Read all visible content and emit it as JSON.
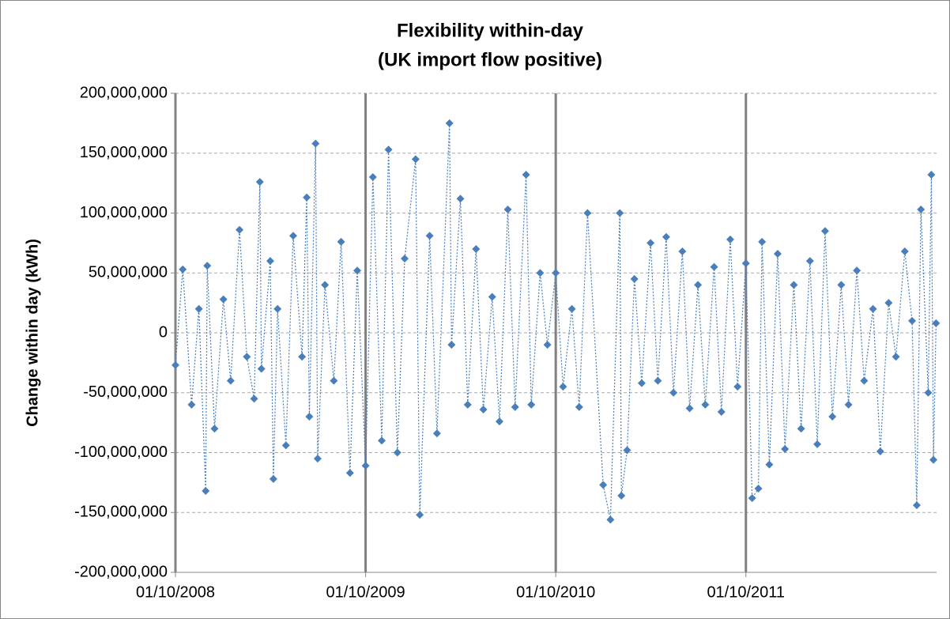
{
  "chart_data": {
    "type": "line",
    "title": [
      "Flexibility within-day",
      "(UK import flow positive)"
    ],
    "y_label": "Change within day (kWh)",
    "x": [
      "01/10/2008",
      "15/10/2008",
      "01/11/2008",
      "15/11/2008",
      "28/11/2008",
      "01/12/2008",
      "15/12/2008",
      "01/01/2009",
      "15/01/2009",
      "01/02/2009",
      "15/02/2009",
      "01/03/2009",
      "12/03/2009",
      "15/03/2009",
      "01/04/2009",
      "07/04/2009",
      "15/04/2009",
      "01/05/2009",
      "15/05/2009",
      "01/06/2009",
      "10/06/2009",
      "15/06/2009",
      "27/06/2009",
      "01/07/2009",
      "15/07/2009",
      "01/08/2009",
      "15/08/2009",
      "01/09/2009",
      "15/09/2009",
      "01/10/2009",
      "15/10/2009",
      "01/11/2009",
      "14/11/2009",
      "01/12/2009",
      "15/12/2009",
      "05/01/2010",
      "13/01/2010",
      "01/02/2010",
      "15/02/2010",
      "11/03/2010",
      "15/03/2010",
      "01/04/2010",
      "15/04/2010",
      "01/05/2010",
      "15/05/2010",
      "01/06/2010",
      "15/06/2010",
      "01/07/2010",
      "15/07/2010",
      "05/08/2010",
      "15/08/2010",
      "01/09/2010",
      "15/09/2010",
      "01/10/2010",
      "15/10/2010",
      "01/11/2010",
      "15/11/2010",
      "01/12/2010",
      "31/12/2010",
      "14/01/2011",
      "01/02/2011",
      "04/02/2011",
      "15/02/2011",
      "01/03/2011",
      "15/03/2011",
      "01/04/2011",
      "15/04/2011",
      "01/05/2011",
      "15/05/2011",
      "01/06/2011",
      "15/06/2011",
      "01/07/2011",
      "15/07/2011",
      "01/08/2011",
      "15/08/2011",
      "01/09/2011",
      "15/09/2011",
      "01/10/2011",
      "13/10/2011",
      "25/10/2011",
      "01/11/2011",
      "15/11/2011",
      "01/12/2011",
      "15/12/2011",
      "01/01/2012",
      "15/01/2012",
      "01/02/2012",
      "15/02/2012",
      "01/03/2012",
      "15/03/2012",
      "01/04/2012",
      "15/04/2012",
      "01/05/2012",
      "15/05/2012",
      "01/06/2012",
      "15/06/2012",
      "01/07/2012",
      "15/07/2012",
      "01/08/2012",
      "15/08/2012",
      "24/08/2012",
      "01/09/2012",
      "15/09/2012",
      "21/09/2012",
      "25/09/2012",
      "30/09/2012"
    ],
    "series": [
      {
        "color": "#4a7ebb",
        "values": [
          -27000000,
          53000000,
          -60000000,
          20000000,
          -132000000,
          56000000,
          -80000000,
          28000000,
          -40000000,
          86000000,
          -20000000,
          -55000000,
          126000000,
          -30000000,
          60000000,
          -122000000,
          20000000,
          -94000000,
          81000000,
          -20000000,
          113000000,
          -70000000,
          158000000,
          -105000000,
          40000000,
          -40000000,
          76000000,
          -117000000,
          52000000,
          -111000000,
          130000000,
          -90000000,
          153000000,
          -100000000,
          62000000,
          145000000,
          -152000000,
          81000000,
          -84000000,
          175000000,
          -10000000,
          112000000,
          -60000000,
          70000000,
          -64000000,
          30000000,
          -74000000,
          103000000,
          -62000000,
          132000000,
          -60000000,
          50000000,
          -10000000,
          50000000,
          -45000000,
          20000000,
          -62000000,
          100000000,
          -127000000,
          -156000000,
          100000000,
          -136000000,
          -98000000,
          45000000,
          -42000000,
          75000000,
          -40000000,
          80000000,
          -50000000,
          68000000,
          -63000000,
          40000000,
          -60000000,
          55000000,
          -66000000,
          78000000,
          -45000000,
          58000000,
          -138000000,
          -130000000,
          76000000,
          -110000000,
          66000000,
          -97000000,
          40000000,
          -80000000,
          60000000,
          -93000000,
          85000000,
          -70000000,
          40000000,
          -60000000,
          52000000,
          -40000000,
          20000000,
          -99000000,
          25000000,
          -20000000,
          68000000,
          10000000,
          -144000000,
          103000000,
          -50000000,
          132000000,
          -106000000,
          8000000
        ]
      }
    ],
    "xlim": [
      "01/10/2008",
      "01/10/2012"
    ],
    "xticks": [
      "01/10/2008",
      "01/10/2009",
      "01/10/2010",
      "01/10/2011"
    ],
    "ylim": [
      -200000000,
      200000000
    ],
    "yticks": [
      {
        "value": -200000000,
        "label": "-200,000,000"
      },
      {
        "value": -150000000,
        "label": "-150,000,000"
      },
      {
        "value": -100000000,
        "label": "-100,000,000"
      },
      {
        "value": -50000000,
        "label": "-50,000,000"
      },
      0,
      {
        "value": 50000000,
        "label": "50,000,000"
      },
      {
        "value": 100000000,
        "label": "100,000,000"
      },
      {
        "value": 150000000,
        "label": "150,000,000"
      },
      {
        "value": 200000000,
        "label": "200,000,000"
      }
    ],
    "grid": true
  }
}
